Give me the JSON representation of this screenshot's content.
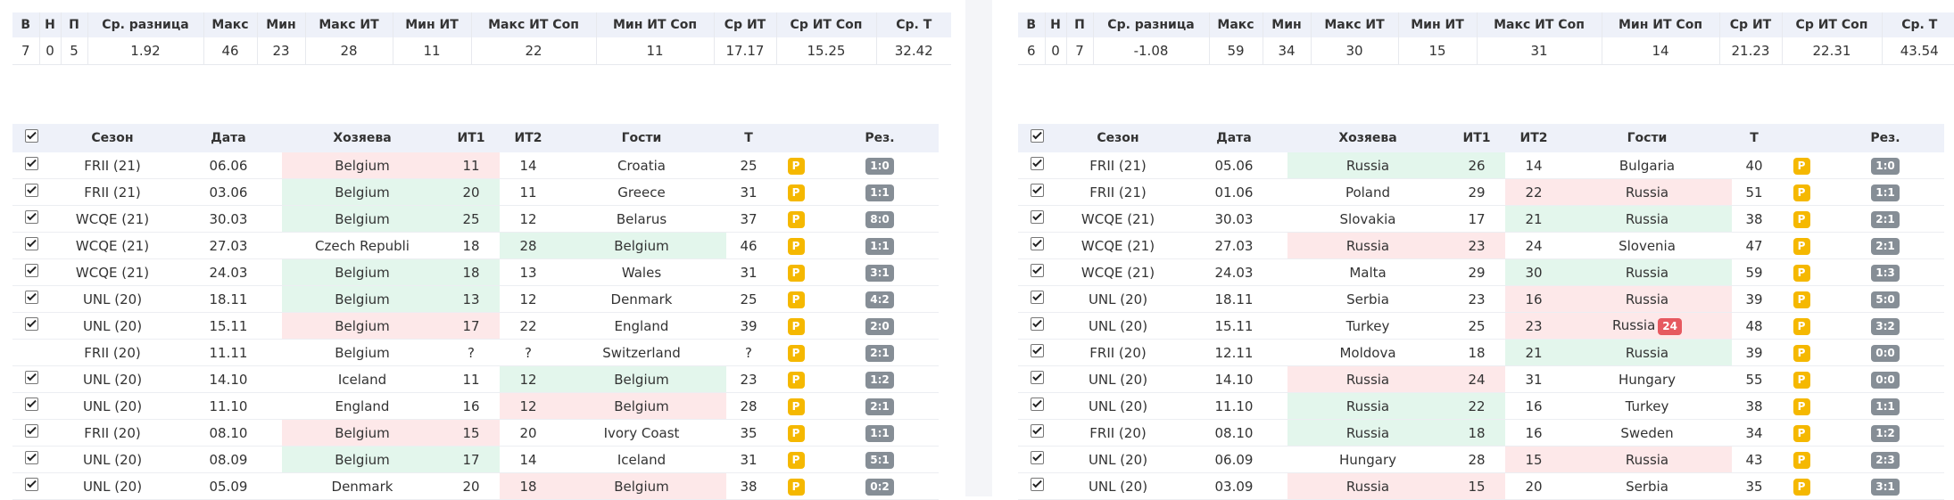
{
  "summary_headers": [
    "В",
    "Н",
    "П",
    "Ср. разница",
    "Макс",
    "Мин",
    "Макс ИТ",
    "Мин ИТ",
    "Макс ИТ Соп",
    "Мин ИТ Соп",
    "Ср ИТ",
    "Ср ИТ Соп",
    "Ср. Т"
  ],
  "match_headers": [
    "",
    "Сезон",
    "Дата",
    "Хозяева",
    "ИТ1",
    "ИТ2",
    "Гости",
    "Т",
    "",
    "Рез."
  ],
  "p_label": "P",
  "colors": {
    "win_cell": "#e3f6ec",
    "loss_cell": "#fde8e9",
    "p_badge": "#f5b800",
    "result_badge": "#868e96",
    "live_badge": "#e65960"
  },
  "icons": {
    "checkbox": "checkbox-icon"
  },
  "left": {
    "summary": [
      "7",
      "0",
      "5",
      "1.92",
      "46",
      "23",
      "28",
      "11",
      "22",
      "11",
      "17.17",
      "15.25",
      "32.42"
    ],
    "matches": [
      {
        "checked": true,
        "season": "FRII (21)",
        "date": "06.06",
        "home": "Belgium",
        "it1": "11",
        "it2": "14",
        "away": "Croatia",
        "total": "25",
        "result": "1:0",
        "hl": "home",
        "hc": "red"
      },
      {
        "checked": true,
        "season": "FRII (21)",
        "date": "03.06",
        "home": "Belgium",
        "it1": "20",
        "it2": "11",
        "away": "Greece",
        "total": "31",
        "result": "1:1",
        "hl": "home",
        "hc": "green"
      },
      {
        "checked": true,
        "season": "WCQE (21)",
        "date": "30.03",
        "home": "Belgium",
        "it1": "25",
        "it2": "12",
        "away": "Belarus",
        "total": "37",
        "result": "8:0",
        "hl": "home",
        "hc": "green"
      },
      {
        "checked": true,
        "season": "WCQE (21)",
        "date": "27.03",
        "home": "Czech Republi",
        "it1": "18",
        "it2": "28",
        "away": "Belgium",
        "total": "46",
        "result": "1:1",
        "hl": "away",
        "hc": "green"
      },
      {
        "checked": true,
        "season": "WCQE (21)",
        "date": "24.03",
        "home": "Belgium",
        "it1": "18",
        "it2": "13",
        "away": "Wales",
        "total": "31",
        "result": "3:1",
        "hl": "home",
        "hc": "green"
      },
      {
        "checked": true,
        "season": "UNL (20)",
        "date": "18.11",
        "home": "Belgium",
        "it1": "13",
        "it2": "12",
        "away": "Denmark",
        "total": "25",
        "result": "4:2",
        "hl": "home",
        "hc": "green"
      },
      {
        "checked": true,
        "season": "UNL (20)",
        "date": "15.11",
        "home": "Belgium",
        "it1": "17",
        "it2": "22",
        "away": "England",
        "total": "39",
        "result": "2:0",
        "hl": "home",
        "hc": "red"
      },
      {
        "checked": false,
        "season": "FRII (20)",
        "date": "11.11",
        "home": "Belgium",
        "it1": "?",
        "it2": "?",
        "away": "Switzerland",
        "total": "?",
        "result": "2:1",
        "hl": "none",
        "hc": ""
      },
      {
        "checked": true,
        "season": "UNL (20)",
        "date": "14.10",
        "home": "Iceland",
        "it1": "11",
        "it2": "12",
        "away": "Belgium",
        "total": "23",
        "result": "1:2",
        "hl": "away",
        "hc": "green"
      },
      {
        "checked": true,
        "season": "UNL (20)",
        "date": "11.10",
        "home": "England",
        "it1": "16",
        "it2": "12",
        "away": "Belgium",
        "total": "28",
        "result": "2:1",
        "hl": "away",
        "hc": "red"
      },
      {
        "checked": true,
        "season": "FRII (20)",
        "date": "08.10",
        "home": "Belgium",
        "it1": "15",
        "it2": "20",
        "away": "Ivory Coast",
        "total": "35",
        "result": "1:1",
        "hl": "home",
        "hc": "red"
      },
      {
        "checked": true,
        "season": "UNL (20)",
        "date": "08.09",
        "home": "Belgium",
        "it1": "17",
        "it2": "14",
        "away": "Iceland",
        "total": "31",
        "result": "5:1",
        "hl": "home",
        "hc": "green"
      },
      {
        "checked": true,
        "season": "UNL (20)",
        "date": "05.09",
        "home": "Denmark",
        "it1": "20",
        "it2": "18",
        "away": "Belgium",
        "total": "38",
        "result": "0:2",
        "hl": "away",
        "hc": "red"
      }
    ]
  },
  "right": {
    "summary": [
      "6",
      "0",
      "7",
      "-1.08",
      "59",
      "34",
      "30",
      "15",
      "31",
      "14",
      "21.23",
      "22.31",
      "43.54"
    ],
    "matches": [
      {
        "checked": true,
        "season": "FRII (21)",
        "date": "05.06",
        "home": "Russia",
        "it1": "26",
        "it2": "14",
        "away": "Bulgaria",
        "total": "40",
        "result": "1:0",
        "hl": "home",
        "hc": "green"
      },
      {
        "checked": true,
        "season": "FRII (21)",
        "date": "01.06",
        "home": "Poland",
        "it1": "29",
        "it2": "22",
        "away": "Russia",
        "total": "51",
        "result": "1:1",
        "hl": "away",
        "hc": "red"
      },
      {
        "checked": true,
        "season": "WCQE (21)",
        "date": "30.03",
        "home": "Slovakia",
        "it1": "17",
        "it2": "21",
        "away": "Russia",
        "total": "38",
        "result": "2:1",
        "hl": "away",
        "hc": "green"
      },
      {
        "checked": true,
        "season": "WCQE (21)",
        "date": "27.03",
        "home": "Russia",
        "it1": "23",
        "it2": "24",
        "away": "Slovenia",
        "total": "47",
        "result": "2:1",
        "hl": "home",
        "hc": "red"
      },
      {
        "checked": true,
        "season": "WCQE (21)",
        "date": "24.03",
        "home": "Malta",
        "it1": "29",
        "it2": "30",
        "away": "Russia",
        "total": "59",
        "result": "1:3",
        "hl": "away",
        "hc": "green"
      },
      {
        "checked": true,
        "season": "UNL (20)",
        "date": "18.11",
        "home": "Serbia",
        "it1": "23",
        "it2": "16",
        "away": "Russia",
        "total": "39",
        "result": "5:0",
        "hl": "away",
        "hc": "red"
      },
      {
        "checked": true,
        "season": "UNL (20)",
        "date": "15.11",
        "home": "Turkey",
        "it1": "25",
        "it2": "23",
        "away": "Russia",
        "away_badge": "24",
        "total": "48",
        "result": "3:2",
        "hl": "away",
        "hc": "red"
      },
      {
        "checked": true,
        "season": "FRII (20)",
        "date": "12.11",
        "home": "Moldova",
        "it1": "18",
        "it2": "21",
        "away": "Russia",
        "total": "39",
        "result": "0:0",
        "hl": "away",
        "hc": "green"
      },
      {
        "checked": true,
        "season": "UNL (20)",
        "date": "14.10",
        "home": "Russia",
        "it1": "24",
        "it2": "31",
        "away": "Hungary",
        "total": "55",
        "result": "0:0",
        "hl": "home",
        "hc": "red"
      },
      {
        "checked": true,
        "season": "UNL (20)",
        "date": "11.10",
        "home": "Russia",
        "it1": "22",
        "it2": "16",
        "away": "Turkey",
        "total": "38",
        "result": "1:1",
        "hl": "home",
        "hc": "green"
      },
      {
        "checked": true,
        "season": "FRII (20)",
        "date": "08.10",
        "home": "Russia",
        "it1": "18",
        "it2": "16",
        "away": "Sweden",
        "total": "34",
        "result": "1:2",
        "hl": "home",
        "hc": "green"
      },
      {
        "checked": true,
        "season": "UNL (20)",
        "date": "06.09",
        "home": "Hungary",
        "it1": "28",
        "it2": "15",
        "away": "Russia",
        "total": "43",
        "result": "2:3",
        "hl": "away",
        "hc": "red"
      },
      {
        "checked": true,
        "season": "UNL (20)",
        "date": "03.09",
        "home": "Russia",
        "it1": "15",
        "it2": "20",
        "away": "Serbia",
        "total": "35",
        "result": "3:1",
        "hl": "home",
        "hc": "red"
      }
    ]
  }
}
